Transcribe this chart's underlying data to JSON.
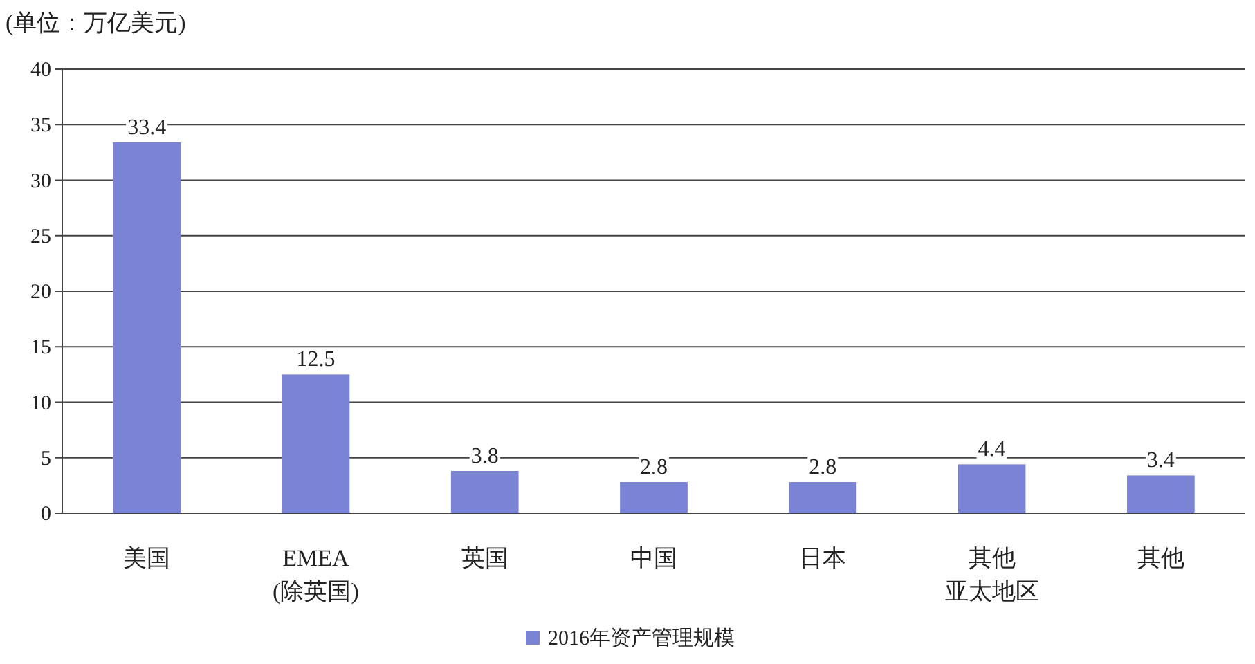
{
  "chart_data": {
    "type": "bar",
    "ylabel": "(单位：万亿美元)",
    "categories": [
      "美国",
      "EMEA\n(除英国)",
      "英国",
      "中国",
      "日本",
      "其他亚太地区",
      "其他"
    ],
    "series": [
      {
        "name": "2016年资产管理规模",
        "color": "#7b84d4",
        "values": [
          33.4,
          12.5,
          3.8,
          2.8,
          2.8,
          4.4,
          3.4
        ]
      }
    ],
    "ylim": [
      0,
      40
    ],
    "yticks": [
      0,
      5,
      10,
      15,
      20,
      25,
      30,
      35,
      40
    ],
    "grid": "y",
    "data_labels": true,
    "legend": "bottom"
  }
}
